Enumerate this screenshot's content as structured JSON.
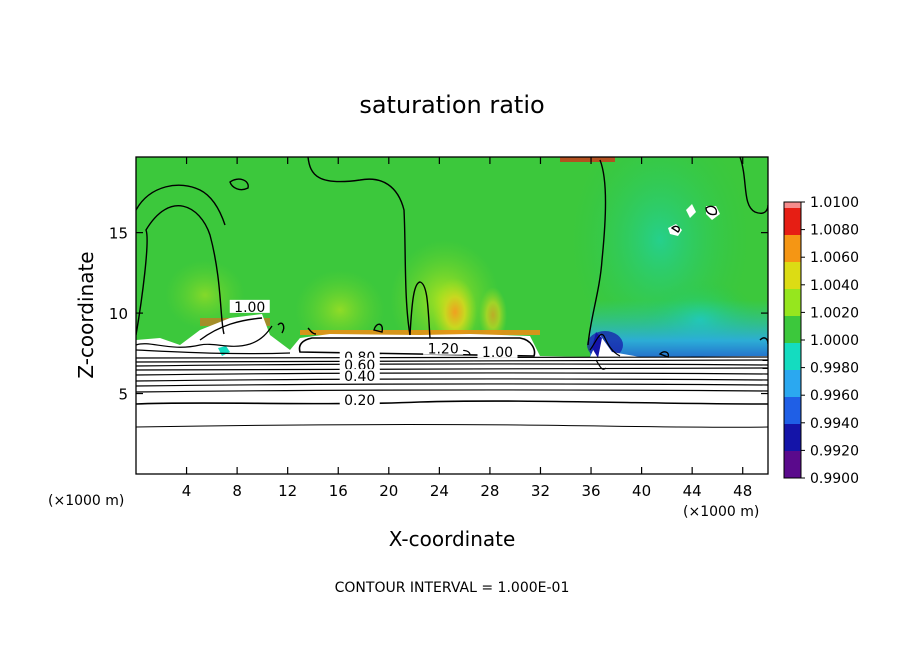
{
  "chart_data": {
    "type": "heatmap",
    "title": "saturation ratio",
    "xlabel": "X-coordinate",
    "ylabel": "Z-coordinate",
    "x_unit": "(×1000 m)",
    "z_unit": "(×1000 m)",
    "x_ticks": [
      4,
      8,
      12,
      16,
      20,
      24,
      28,
      32,
      36,
      40,
      44,
      48
    ],
    "y_ticks": [
      5,
      10,
      15
    ],
    "xlim": [
      0,
      50
    ],
    "ylim": [
      0,
      19.7
    ],
    "footer": "CONTOUR INTERVAL = 1.000E-01",
    "colorbar": {
      "levels": [
        "0.9900",
        "0.9920",
        "0.9940",
        "0.9960",
        "0.9980",
        "1.0000",
        "1.0020",
        "1.0040",
        "1.0060",
        "1.0080",
        "1.0100"
      ],
      "colors": [
        "#5a0a8c",
        "#1414a8",
        "#1f5fe6",
        "#2ba8f0",
        "#14dcc0",
        "#3cc83c",
        "#96e61e",
        "#dcdc14",
        "#f59614",
        "#e61e14",
        "#f58c8c"
      ]
    },
    "contour_labels": [
      {
        "text": "1.00",
        "x": 9.0,
        "y": 10.2
      },
      {
        "text": "1.20",
        "x": 24.3,
        "y": 7.6
      },
      {
        "text": "1.00",
        "x": 28.6,
        "y": 7.4
      },
      {
        "text": "0.80",
        "x": 17.7,
        "y": 7.1
      },
      {
        "text": "0.60",
        "x": 17.7,
        "y": 6.6
      },
      {
        "text": "0.40",
        "x": 17.7,
        "y": 5.9
      },
      {
        "text": "0.20",
        "x": 17.7,
        "y": 4.4
      }
    ]
  }
}
